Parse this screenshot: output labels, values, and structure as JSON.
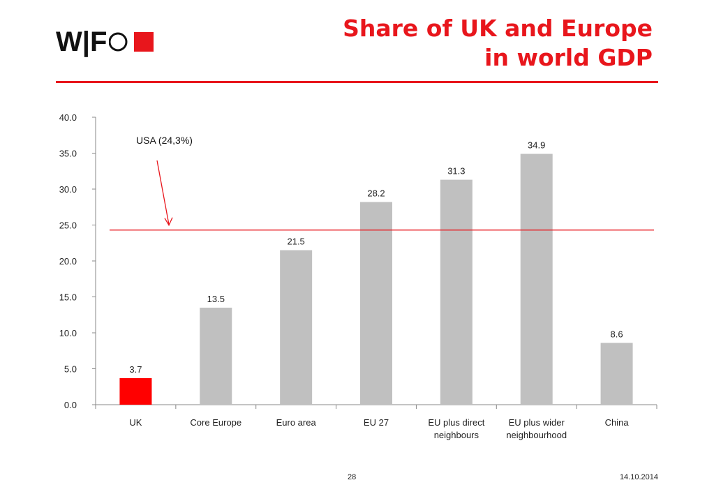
{
  "header": {
    "logo_text": "W|F",
    "title_line1": "Share of UK and Europe",
    "title_line2": "in world GDP"
  },
  "footer": {
    "page_number": "28",
    "date": "14.10.2014"
  },
  "colors": {
    "accent": "#e8161c",
    "bar_default": "#c0c0c0",
    "bar_highlight": "#ff0000",
    "axis": "#888888"
  },
  "chart_data": {
    "type": "bar",
    "categories": [
      "UK",
      "Core Europe",
      "Euro area",
      "EU 27",
      "EU plus direct neighbours",
      "EU plus wider neighbourhood",
      "China"
    ],
    "category_lines": [
      [
        "UK"
      ],
      [
        "Core Europe"
      ],
      [
        "Euro area"
      ],
      [
        "EU 27"
      ],
      [
        "EU plus direct",
        "neighbours"
      ],
      [
        "EU plus wider",
        "neighbourhood"
      ],
      [
        "China"
      ]
    ],
    "values": [
      3.7,
      13.5,
      21.5,
      28.2,
      31.3,
      34.9,
      8.6
    ],
    "value_labels": [
      "3.7",
      "13.5",
      "21.5",
      "28.2",
      "31.3",
      "34.9",
      "8.6"
    ],
    "highlight_index": 0,
    "ylim": [
      0,
      40
    ],
    "yticks": [
      "0.0",
      "5.0",
      "10.0",
      "15.0",
      "20.0",
      "25.0",
      "30.0",
      "35.0",
      "40.0"
    ],
    "ytick_values": [
      0,
      5,
      10,
      15,
      20,
      25,
      30,
      35,
      40
    ],
    "reference_line": {
      "value": 24.3,
      "label": "USA (24,3%)"
    },
    "grid": false,
    "legend": "none"
  }
}
